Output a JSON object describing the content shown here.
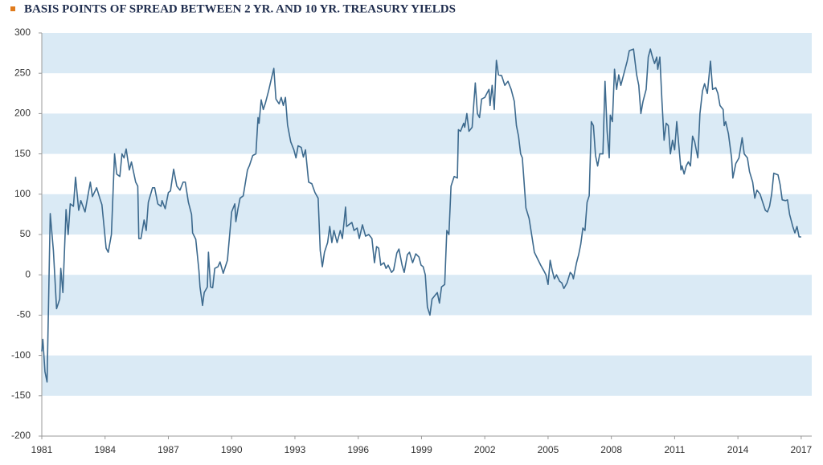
{
  "chart_data": {
    "type": "line",
    "title": "BASIS POINTS OF SPREAD BETWEEN 2 YR. AND 10 YR. TREASURY YIELDS",
    "xlim": [
      1981,
      2017.5
    ],
    "xticks": [
      1981,
      1984,
      1987,
      1990,
      1993,
      1996,
      1999,
      2002,
      2005,
      2008,
      2011,
      2014,
      2017
    ],
    "ylim": [
      -200,
      300
    ],
    "yticks": [
      -200,
      -150,
      -100,
      -50,
      0,
      50,
      100,
      150,
      200,
      250,
      300
    ],
    "band_color": "#daeaf5",
    "series": [
      {
        "color": "#3d6a8e",
        "x": [
          1981.0,
          1981.05,
          1981.15,
          1981.25,
          1981.4,
          1981.55,
          1981.7,
          1981.85,
          1981.9,
          1982.0,
          1982.15,
          1982.25,
          1982.35,
          1982.5,
          1982.6,
          1982.75,
          1982.85,
          1983.05,
          1983.3,
          1983.4,
          1983.6,
          1983.75,
          1983.85,
          1983.95,
          1984.05,
          1984.15,
          1984.3,
          1984.45,
          1984.55,
          1984.7,
          1984.8,
          1984.9,
          1985.0,
          1985.15,
          1985.25,
          1985.45,
          1985.55,
          1985.6,
          1985.7,
          1985.85,
          1985.95,
          1986.05,
          1986.25,
          1986.35,
          1986.5,
          1986.65,
          1986.7,
          1986.85,
          1987.0,
          1987.1,
          1987.25,
          1987.4,
          1987.55,
          1987.7,
          1987.8,
          1987.95,
          1988.1,
          1988.15,
          1988.3,
          1988.45,
          1988.5,
          1988.62,
          1988.7,
          1988.85,
          1988.9,
          1989.0,
          1989.1,
          1989.2,
          1989.35,
          1989.45,
          1989.6,
          1989.8,
          1990.0,
          1990.15,
          1990.2,
          1990.3,
          1990.4,
          1990.55,
          1990.75,
          1990.85,
          1991.0,
          1991.15,
          1991.25,
          1991.3,
          1991.4,
          1991.5,
          1991.6,
          1991.75,
          1991.9,
          1992.0,
          1992.1,
          1992.25,
          1992.35,
          1992.45,
          1992.55,
          1992.65,
          1992.8,
          1992.95,
          1993.05,
          1993.15,
          1993.3,
          1993.4,
          1993.5,
          1993.65,
          1993.8,
          1993.95,
          1994.1,
          1994.2,
          1994.3,
          1994.4,
          1994.55,
          1994.65,
          1994.75,
          1994.85,
          1995.0,
          1995.15,
          1995.25,
          1995.4,
          1995.45,
          1995.7,
          1995.8,
          1995.95,
          1996.05,
          1996.2,
          1996.35,
          1996.5,
          1996.65,
          1996.77,
          1996.87,
          1996.97,
          1997.07,
          1997.22,
          1997.32,
          1997.42,
          1997.58,
          1997.68,
          1997.83,
          1997.93,
          1998.08,
          1998.18,
          1998.33,
          1998.43,
          1998.58,
          1998.73,
          1998.88,
          1998.98,
          1999.08,
          1999.18,
          1999.28,
          1999.4,
          1999.5,
          1999.75,
          1999.85,
          1999.95,
          2000.1,
          2000.2,
          2000.3,
          2000.4,
          2000.55,
          2000.7,
          2000.75,
          2000.85,
          2001.0,
          2001.05,
          2001.15,
          2001.25,
          2001.4,
          2001.55,
          2001.65,
          2001.75,
          2001.85,
          2002.0,
          2002.1,
          2002.2,
          2002.25,
          2002.35,
          2002.45,
          2002.55,
          2002.65,
          2002.8,
          2002.95,
          2003.1,
          2003.25,
          2003.4,
          2003.5,
          2003.6,
          2003.7,
          2003.78,
          2003.85,
          2003.95,
          2004.1,
          2004.25,
          2004.35,
          2004.5,
          2004.65,
          2004.8,
          2004.9,
          2005.0,
          2005.1,
          2005.2,
          2005.3,
          2005.4,
          2005.55,
          2005.65,
          2005.75,
          2005.9,
          2006.05,
          2006.15,
          2006.2,
          2006.35,
          2006.45,
          2006.55,
          2006.65,
          2006.75,
          2006.85,
          2006.95,
          2007.05,
          2007.15,
          2007.25,
          2007.35,
          2007.45,
          2007.6,
          2007.7,
          2007.8,
          2007.9,
          2007.95,
          2008.05,
          2008.15,
          2008.25,
          2008.35,
          2008.45,
          2008.6,
          2008.75,
          2008.85,
          2009.05,
          2009.2,
          2009.3,
          2009.4,
          2009.5,
          2009.65,
          2009.75,
          2009.85,
          2009.95,
          2010.05,
          2010.15,
          2010.2,
          2010.3,
          2010.4,
          2010.5,
          2010.6,
          2010.7,
          2010.8,
          2010.9,
          2011.0,
          2011.1,
          2011.2,
          2011.3,
          2011.35,
          2011.45,
          2011.55,
          2011.65,
          2011.75,
          2011.85,
          2011.95,
          2012.1,
          2012.2,
          2012.32,
          2012.42,
          2012.55,
          2012.7,
          2012.8,
          2012.95,
          2013.05,
          2013.15,
          2013.3,
          2013.35,
          2013.42,
          2013.55,
          2013.7,
          2013.76,
          2013.9,
          2014.05,
          2014.2,
          2014.3,
          2014.45,
          2014.55,
          2014.7,
          2014.8,
          2014.9,
          2015.05,
          2015.2,
          2015.3,
          2015.4,
          2015.5,
          2015.6,
          2015.7,
          2015.8,
          2015.9,
          2016.0,
          2016.1,
          2016.25,
          2016.35,
          2016.45,
          2016.6,
          2016.7,
          2016.8,
          2016.9,
          2017.0
        ],
        "values": [
          -95,
          -80,
          -120,
          -133,
          76,
          30,
          -42,
          -30,
          8,
          -22,
          81,
          50,
          88,
          85,
          121,
          80,
          92,
          78,
          115,
          97,
          108,
          95,
          87,
          60,
          33,
          28,
          50,
          150,
          125,
          122,
          150,
          145,
          156,
          130,
          140,
          115,
          110,
          45,
          45,
          68,
          55,
          90,
          108,
          108,
          88,
          85,
          92,
          82,
          102,
          104,
          131,
          110,
          105,
          115,
          115,
          90,
          75,
          52,
          44,
          5,
          -15,
          -38,
          -22,
          -15,
          28,
          -15,
          -16,
          8,
          10,
          16,
          2,
          18,
          78,
          88,
          66,
          82,
          95,
          98,
          130,
          136,
          148,
          150,
          195,
          188,
          217,
          205,
          213,
          228,
          245,
          256,
          218,
          212,
          220,
          210,
          220,
          186,
          165,
          155,
          145,
          160,
          158,
          146,
          155,
          115,
          113,
          102,
          95,
          30,
          10,
          28,
          40,
          60,
          40,
          55,
          40,
          55,
          45,
          84,
          60,
          65,
          55,
          58,
          45,
          62,
          48,
          50,
          45,
          15,
          35,
          33,
          12,
          15,
          8,
          12,
          3,
          6,
          27,
          32,
          12,
          3,
          25,
          28,
          15,
          26,
          22,
          12,
          10,
          0,
          -40,
          -50,
          -30,
          -22,
          -35,
          -15,
          -12,
          55,
          50,
          110,
          122,
          120,
          180,
          178,
          188,
          183,
          200,
          178,
          183,
          238,
          200,
          195,
          218,
          220,
          225,
          230,
          210,
          235,
          205,
          266,
          248,
          247,
          235,
          240,
          230,
          215,
          185,
          172,
          150,
          145,
          120,
          83,
          70,
          45,
          28,
          20,
          12,
          5,
          0,
          -12,
          18,
          5,
          -5,
          0,
          -8,
          -10,
          -17,
          -10,
          3,
          0,
          -5,
          15,
          25,
          38,
          58,
          55,
          90,
          98,
          190,
          185,
          148,
          135,
          150,
          150,
          240,
          178,
          145,
          198,
          190,
          255,
          230,
          248,
          235,
          250,
          265,
          278,
          280,
          248,
          235,
          200,
          215,
          230,
          270,
          280,
          270,
          262,
          270,
          255,
          270,
          215,
          167,
          188,
          185,
          150,
          167,
          155,
          190,
          160,
          130,
          135,
          125,
          135,
          140,
          135,
          172,
          165,
          145,
          200,
          228,
          237,
          225,
          265,
          230,
          232,
          225,
          210,
          205,
          185,
          190,
          175,
          145,
          120,
          138,
          145,
          170,
          150,
          145,
          128,
          115,
          95,
          105,
          100,
          88,
          80,
          78,
          85,
          100,
          126,
          125,
          124,
          112,
          93,
          92,
          93,
          75,
          60,
          52,
          60,
          47,
          47
        ]
      }
    ]
  }
}
